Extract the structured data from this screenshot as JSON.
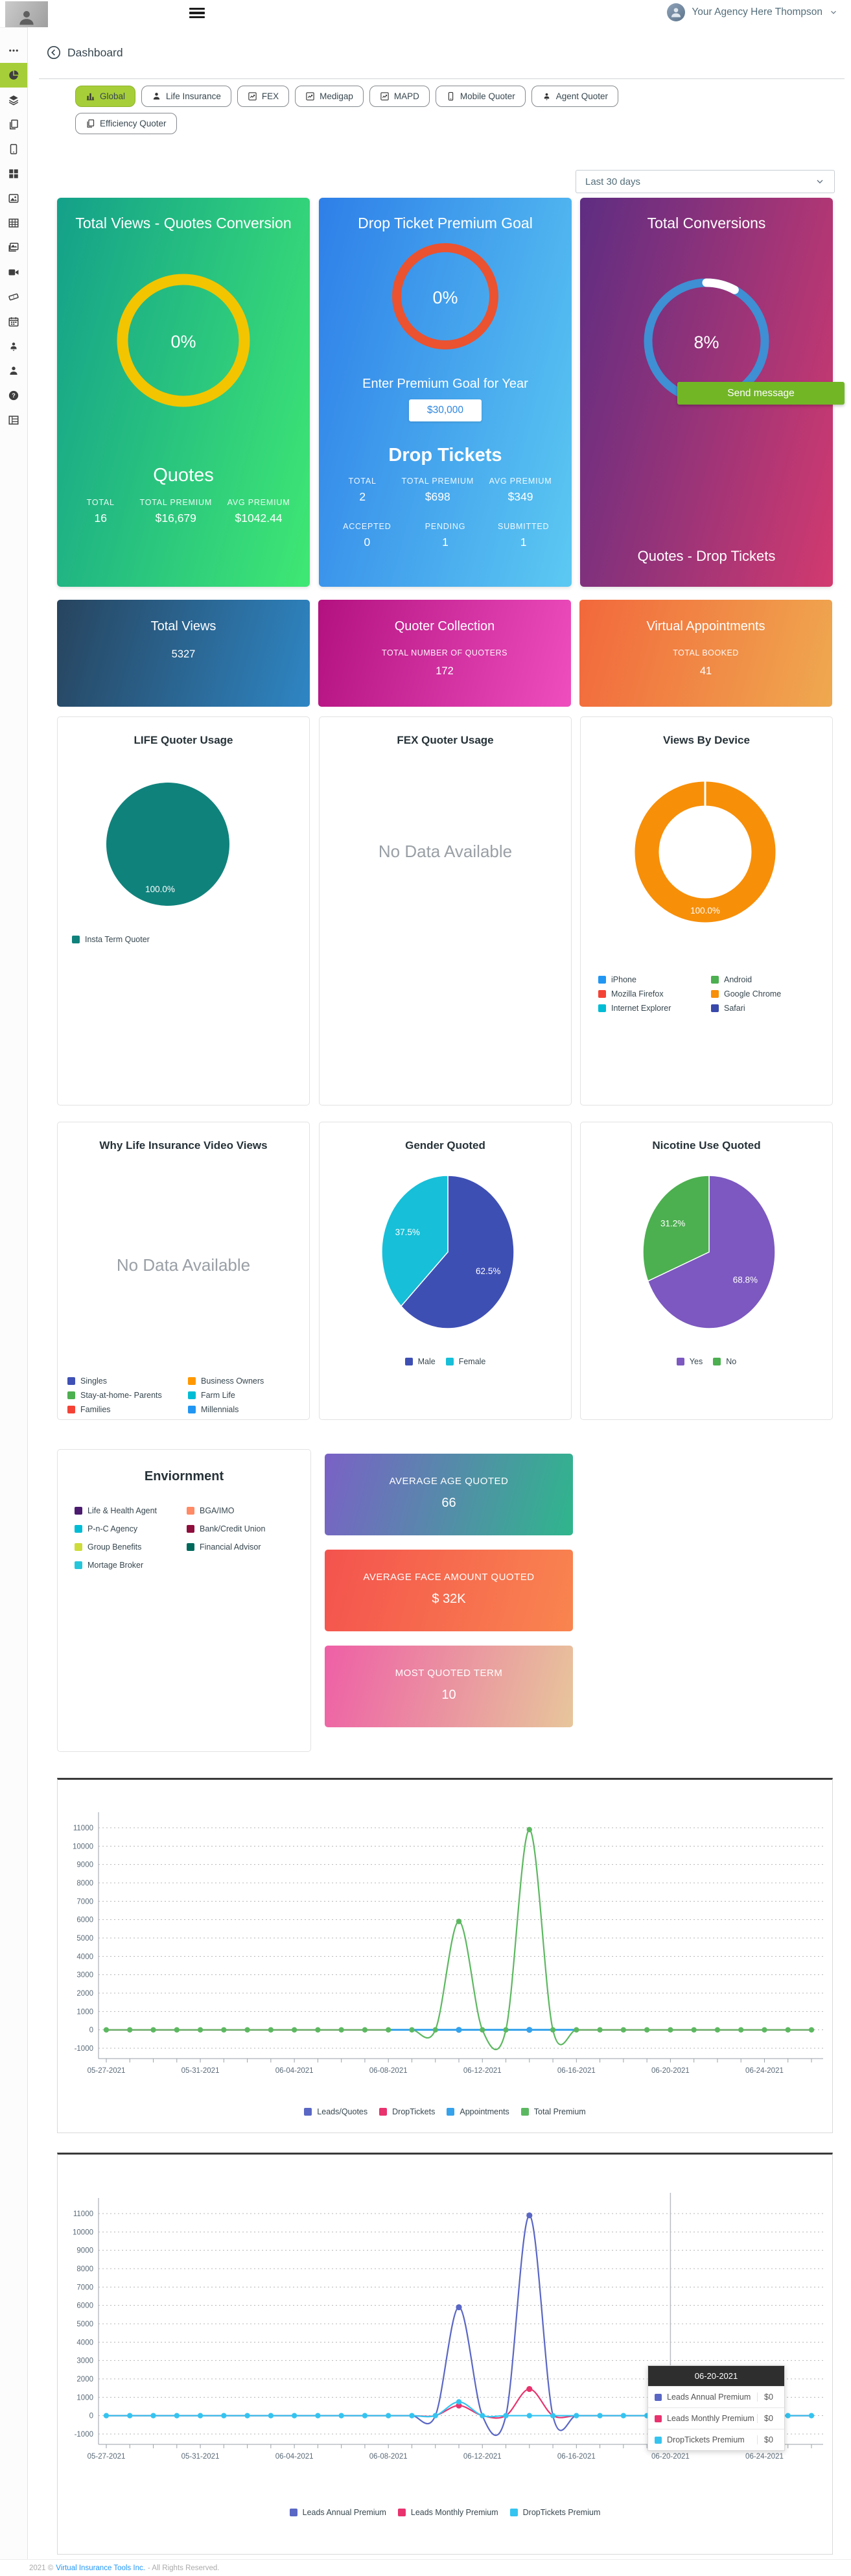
{
  "header": {
    "user_name": "Your Agency Here Thompson"
  },
  "page": {
    "title": "Dashboard"
  },
  "tabs_row1": [
    {
      "label": "Global",
      "icon": "bars",
      "active": true
    },
    {
      "label": "Life Insurance",
      "icon": "person"
    },
    {
      "label": "FEX",
      "icon": "chartbox"
    },
    {
      "label": "Medigap",
      "icon": "chartbox"
    },
    {
      "label": "MAPD",
      "icon": "chartbox"
    },
    {
      "label": "Mobile Quoter",
      "icon": "phone"
    },
    {
      "label": "Agent Quoter",
      "icon": "personpin"
    }
  ],
  "tabs_row2": [
    {
      "label": "Efficiency Quoter",
      "icon": "copy"
    }
  ],
  "sidebar": [
    {
      "icon": "ellipsis",
      "label": "menu"
    },
    {
      "icon": "pie",
      "label": "dashboard",
      "active": true
    },
    {
      "icon": "layers",
      "label": "quoters"
    },
    {
      "icon": "copy",
      "label": "pages"
    },
    {
      "icon": "tablet",
      "label": "mobile"
    },
    {
      "icon": "grid",
      "label": "apps"
    },
    {
      "icon": "image",
      "label": "media"
    },
    {
      "icon": "table",
      "label": "tables"
    },
    {
      "icon": "photos",
      "label": "gallery"
    },
    {
      "icon": "video",
      "label": "videos"
    },
    {
      "icon": "ticket",
      "label": "tickets"
    },
    {
      "icon": "calendar",
      "label": "calendar"
    },
    {
      "icon": "personpin",
      "label": "agents"
    },
    {
      "icon": "person",
      "label": "profile"
    },
    {
      "icon": "help",
      "label": "help"
    },
    {
      "icon": "rows",
      "label": "reports"
    }
  ],
  "period_select": {
    "value": "Last 30 days"
  },
  "palette": {
    "green_card": [
      "#14A08A",
      "#3FE873"
    ],
    "blue_card": [
      "#2E7FE8",
      "#5CC9F2"
    ],
    "purple_card": [
      "#5E2D82",
      "#D23A6F"
    ],
    "navy_card": [
      "#27445E",
      "#2E86C4"
    ],
    "magenta_card": [
      "#B2117F",
      "#EF4EBF"
    ],
    "orange_card": [
      "#F2683C",
      "#EFA94F"
    ],
    "active_green": "#A6CE39",
    "send_green": "#72B626"
  },
  "conversion_card": {
    "title": "Total Views - Quotes Conversion",
    "pct": "0%",
    "ring_color": "#F2C500",
    "section_title": "Quotes",
    "stats": [
      {
        "label": "TOTAL",
        "value": "16"
      },
      {
        "label": "TOTAL PREMIUM",
        "value": "$16,679"
      },
      {
        "label": "AVG PREMIUM",
        "value": "$1042.44"
      }
    ]
  },
  "goal_card": {
    "title": "Drop Ticket Premium Goal",
    "pct": "0%",
    "ring_color": "#EA5230",
    "goal_label": "Enter Premium Goal for Year",
    "goal_value": "$30,000",
    "section_title": "Drop Tickets",
    "stats": [
      {
        "label": "TOTAL",
        "value": "2"
      },
      {
        "label": "TOTAL PREMIUM",
        "value": "$698"
      },
      {
        "label": "AVG PREMIUM",
        "value": "$349"
      }
    ],
    "stats2": [
      {
        "label": "ACCEPTED",
        "value": "0"
      },
      {
        "label": "PENDING",
        "value": "1"
      },
      {
        "label": "SUBMITTED",
        "value": "1"
      }
    ]
  },
  "conversions_card": {
    "title": "Total Conversions",
    "pct": "8%",
    "pct_value": 8,
    "ring_color": "#3E8FD4",
    "button_label": "Send message",
    "caption": "Quotes - Drop Tickets"
  },
  "stat_cards": [
    {
      "title": "Total Views",
      "label": "",
      "value": "5327",
      "bg": [
        "#27445E",
        "#2E86C4"
      ]
    },
    {
      "title": "Quoter Collection",
      "label": "TOTAL NUMBER OF QUOTERS",
      "value": "172",
      "bg": [
        "#B2117F",
        "#EF4EBF"
      ]
    },
    {
      "title": "Virtual Appointments",
      "label": "TOTAL BOOKED",
      "value": "41",
      "bg": [
        "#F2683C",
        "#EFA94F"
      ]
    }
  ],
  "info_bars": [
    {
      "label": "AVERAGE AGE QUOTED",
      "value": "66",
      "bg": [
        "#7A61C6",
        "#2FB68C"
      ]
    },
    {
      "label": "AVERAGE FACE AMOUNT QUOTED",
      "value": "$ 32K",
      "bg": [
        "#F4534E",
        "#F9854F"
      ]
    },
    {
      "label": "MOST QUOTED TERM",
      "value": "10",
      "bg": [
        "#EE5FA6",
        "#E7C69B"
      ]
    }
  ],
  "footer": {
    "prefix": "2021 ©",
    "link": "Virtual Insurance Tools Inc.",
    "suffix": "- All Rights Reserved."
  },
  "chart_data": [
    {
      "id": "life-quoter-usage",
      "type": "pie",
      "title": "LIFE Quoter Usage",
      "slices": [
        {
          "label": "Insta Term Quoter",
          "value": 100,
          "pct_label": "100.0%",
          "color": "#10827C"
        }
      ]
    },
    {
      "id": "fex-quoter-usage",
      "type": "pie",
      "title": "FEX Quoter Usage",
      "empty_text": "No Data Available",
      "slices": []
    },
    {
      "id": "views-by-device",
      "type": "donut",
      "title": "Views By Device",
      "slices": [
        {
          "label": "Google Chrome",
          "value": 100,
          "pct_label": "100.0%",
          "color": "#F78F08"
        }
      ],
      "legend": [
        {
          "label": "iPhone",
          "color": "#2196F3"
        },
        {
          "label": "Mozilla Firefox",
          "color": "#F44336"
        },
        {
          "label": "Internet Explorer",
          "color": "#00BCD4"
        },
        {
          "label": "Android",
          "color": "#4CAF50"
        },
        {
          "label": "Google Chrome",
          "color": "#F78F08"
        },
        {
          "label": "Safari",
          "color": "#3949AB"
        }
      ]
    },
    {
      "id": "video-views",
      "type": "pie",
      "title": "Why Life Insurance Video Views",
      "empty_text": "No Data Available",
      "slices": [],
      "legend": [
        {
          "label": "Singles",
          "color": "#3F51B5"
        },
        {
          "label": "Stay-at-home- Parents",
          "color": "#4CAF50"
        },
        {
          "label": "Families",
          "color": "#F44336"
        },
        {
          "label": "Business Owners",
          "color": "#FF9800"
        },
        {
          "label": "Farm Life",
          "color": "#00BCD4"
        },
        {
          "label": "Millennials",
          "color": "#2196F3"
        }
      ]
    },
    {
      "id": "gender-quoted",
      "type": "pie",
      "title": "Gender Quoted",
      "slices": [
        {
          "label": "Male",
          "value": 62.5,
          "pct_label": "62.5%",
          "color": "#3E4FB4"
        },
        {
          "label": "Female",
          "value": 37.5,
          "pct_label": "37.5%",
          "color": "#17BFD8"
        }
      ]
    },
    {
      "id": "nicotine-quoted",
      "type": "pie",
      "title": "Nicotine Use Quoted",
      "slices": [
        {
          "label": "Yes",
          "value": 68.8,
          "pct_label": "68.8%",
          "color": "#7C58C0"
        },
        {
          "label": "No",
          "value": 31.2,
          "pct_label": "31.2%",
          "color": "#4CAF50"
        }
      ]
    },
    {
      "id": "environment",
      "type": "pie",
      "title": "Enviornment",
      "slices": [],
      "legend": [
        {
          "label": "Life & Health Agent",
          "color": "#4A1B6E"
        },
        {
          "label": "P-n-C Agency",
          "color": "#00BCD4"
        },
        {
          "label": "Group Benefits",
          "color": "#CDDC39"
        },
        {
          "label": "Mortage Broker",
          "color": "#26C6DA"
        },
        {
          "label": "BGA/IMO",
          "color": "#FF8A65"
        },
        {
          "label": "Bank/Credit Union",
          "color": "#8E0E3C"
        },
        {
          "label": "Financial Advisor",
          "color": "#00695C"
        }
      ]
    },
    {
      "id": "activity-chart",
      "type": "line",
      "x": [
        "05-27-2021",
        "05-28-2021",
        "05-29-2021",
        "05-30-2021",
        "05-31-2021",
        "06-01-2021",
        "06-02-2021",
        "06-03-2021",
        "06-04-2021",
        "06-05-2021",
        "06-06-2021",
        "06-07-2021",
        "06-08-2021",
        "06-09-2021",
        "06-10-2021",
        "06-11-2021",
        "06-12-2021",
        "06-13-2021",
        "06-14-2021",
        "06-15-2021",
        "06-16-2021",
        "06-17-2021",
        "06-18-2021",
        "06-19-2021",
        "06-20-2021",
        "06-21-2021",
        "06-22-2021",
        "06-23-2021",
        "06-24-2021",
        "06-25-2021",
        "06-26-2021"
      ],
      "x_label_every": 4,
      "ylim": [
        -1000,
        11000
      ],
      "ytick_step": 1000,
      "grid": true,
      "legend_position": "bottom",
      "series": [
        {
          "name": "Leads/Quotes",
          "color": "#5A67C4",
          "values": [
            0,
            0,
            0,
            0,
            0,
            0,
            0,
            0,
            0,
            0,
            0,
            0,
            0,
            0,
            0,
            0,
            0,
            0,
            0,
            0,
            0,
            0,
            0,
            0,
            0,
            0,
            0,
            0,
            0,
            0,
            0
          ]
        },
        {
          "name": "DropTickets",
          "color": "#E8336E",
          "values": [
            0,
            0,
            0,
            0,
            0,
            0,
            0,
            0,
            0,
            0,
            0,
            0,
            0,
            0,
            0,
            0,
            0,
            0,
            0,
            0,
            0,
            0,
            0,
            0,
            0,
            0,
            0,
            0,
            0,
            0,
            0
          ]
        },
        {
          "name": "Total Premium",
          "color": "#5CB860",
          "values": [
            0,
            0,
            0,
            0,
            0,
            0,
            0,
            0,
            0,
            0,
            0,
            0,
            0,
            0,
            0,
            5900,
            0,
            0,
            10900,
            0,
            0,
            0,
            0,
            0,
            0,
            0,
            0,
            0,
            0,
            0,
            0
          ],
          "markers": "all"
        },
        {
          "name": "Appointments",
          "color": "#36A2EB",
          "values": [
            0,
            0,
            0,
            0,
            0,
            0,
            0,
            0,
            0,
            0,
            0,
            0,
            0,
            0,
            0,
            0,
            0,
            0,
            0,
            0,
            0,
            0,
            0,
            0,
            0,
            0,
            0,
            0,
            0,
            0,
            0
          ],
          "segment": [
            12,
            20
          ],
          "marker_indices": [
            15,
            18
          ]
        }
      ],
      "legend": [
        {
          "label": "Leads/Quotes",
          "color": "#5A67C4"
        },
        {
          "label": "DropTickets",
          "color": "#E8336E"
        },
        {
          "label": "Appointments",
          "color": "#36A2EB"
        },
        {
          "label": "Total Premium",
          "color": "#5CB860"
        }
      ]
    },
    {
      "id": "premium-chart",
      "type": "line",
      "x": [
        "05-27-2021",
        "05-28-2021",
        "05-29-2021",
        "05-30-2021",
        "05-31-2021",
        "06-01-2021",
        "06-02-2021",
        "06-03-2021",
        "06-04-2021",
        "06-05-2021",
        "06-06-2021",
        "06-07-2021",
        "06-08-2021",
        "06-09-2021",
        "06-10-2021",
        "06-11-2021",
        "06-12-2021",
        "06-13-2021",
        "06-14-2021",
        "06-15-2021",
        "06-16-2021",
        "06-17-2021",
        "06-18-2021",
        "06-19-2021",
        "06-20-2021",
        "06-21-2021",
        "06-22-2021",
        "06-23-2021",
        "06-24-2021",
        "06-25-2021",
        "06-26-2021"
      ],
      "x_label_every": 4,
      "ylim": [
        -1000,
        11000
      ],
      "ytick_step": 1000,
      "grid": true,
      "legend_position": "bottom",
      "crosshair_index": 24,
      "series": [
        {
          "name": "Leads Annual Premium",
          "color": "#5A67C4",
          "values": [
            0,
            0,
            0,
            0,
            0,
            0,
            0,
            0,
            0,
            0,
            0,
            0,
            0,
            0,
            0,
            5900,
            0,
            0,
            10900,
            0,
            0,
            0,
            0,
            0,
            0,
            0,
            0,
            0,
            0,
            0,
            0
          ],
          "marker_indices": [
            15,
            18
          ]
        },
        {
          "name": "Leads Monthly Premium",
          "color": "#E8336E",
          "values": [
            0,
            0,
            0,
            0,
            0,
            0,
            0,
            0,
            0,
            0,
            0,
            0,
            0,
            0,
            0,
            550,
            0,
            0,
            1450,
            0,
            0,
            0,
            0,
            0,
            0,
            0,
            0,
            0,
            0,
            0,
            0
          ],
          "marker_indices": [
            15,
            18
          ]
        },
        {
          "name": "DropTickets Premium",
          "color": "#35C4F0",
          "values": [
            0,
            0,
            0,
            0,
            0,
            0,
            0,
            0,
            0,
            0,
            0,
            0,
            0,
            0,
            0,
            750,
            0,
            0,
            0,
            0,
            0,
            0,
            0,
            0,
            0,
            0,
            0,
            0,
            0,
            0,
            0
          ],
          "markers": "all",
          "highlight_index": 24
        }
      ],
      "legend": [
        {
          "label": "Leads Annual Premium",
          "color": "#5A67C4"
        },
        {
          "label": "Leads Monthly Premium",
          "color": "#E8336E"
        },
        {
          "label": "DropTickets Premium",
          "color": "#35C4F0"
        }
      ],
      "tooltip": {
        "date": "06-20-2021",
        "rows": [
          {
            "label": "Leads Annual Premium",
            "value": "$0",
            "color": "#5A67C4"
          },
          {
            "label": "Leads Monthly Premium",
            "value": "$0",
            "color": "#E8336E"
          },
          {
            "label": "DropTickets Premium",
            "value": "$0",
            "color": "#35C4F0"
          }
        ]
      }
    }
  ]
}
